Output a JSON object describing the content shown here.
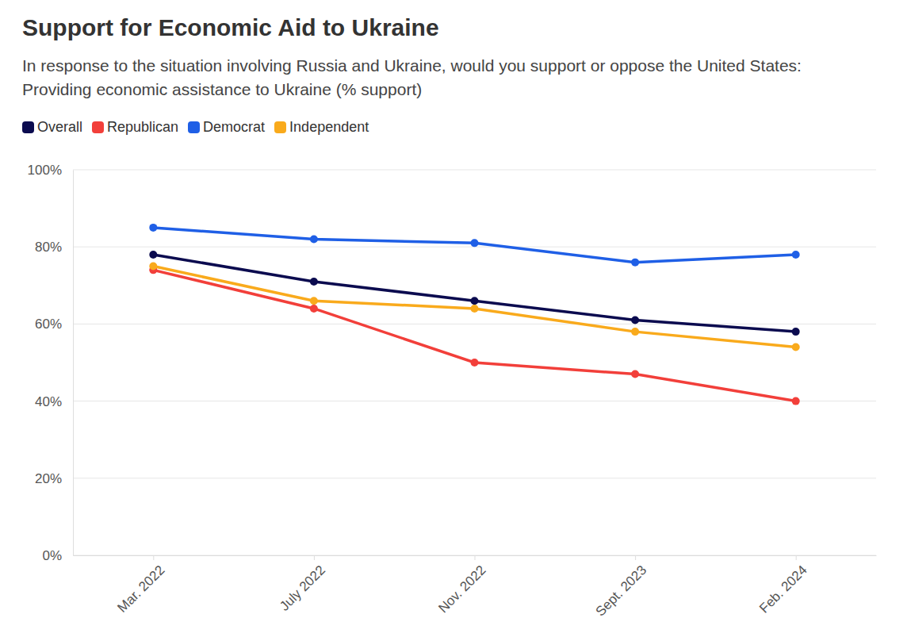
{
  "chart_data": {
    "type": "line",
    "title": "Support for Economic Aid to Ukraine",
    "subtitle": "In response to the situation involving Russia and Ukraine, would you support or oppose the United States: Providing economic assistance to Ukraine (% support)",
    "categories": [
      "Mar. 2022",
      "July 2022",
      "Nov. 2022",
      "Sept. 2023",
      "Feb. 2024"
    ],
    "series": [
      {
        "name": "Overall",
        "color": "#0b0b4f",
        "values": [
          78,
          71,
          66,
          61,
          58
        ]
      },
      {
        "name": "Republican",
        "color": "#f23f3a",
        "values": [
          74,
          64,
          50,
          47,
          40
        ]
      },
      {
        "name": "Democrat",
        "color": "#1f5fe6",
        "values": [
          85,
          82,
          81,
          76,
          78
        ]
      },
      {
        "name": "Independent",
        "color": "#f9aa1c",
        "values": [
          75,
          66,
          64,
          58,
          54
        ]
      }
    ],
    "ylim": [
      0,
      100
    ],
    "yticks": [
      {
        "value": 0,
        "label": "0%"
      },
      {
        "value": 20,
        "label": "20%"
      },
      {
        "value": 40,
        "label": "40%"
      },
      {
        "value": 60,
        "label": "60%"
      },
      {
        "value": 80,
        "label": "80%"
      },
      {
        "value": 100,
        "label": "100%"
      }
    ],
    "grid": true,
    "legend": "top-left",
    "marker": "circle",
    "line_style": "solid"
  }
}
